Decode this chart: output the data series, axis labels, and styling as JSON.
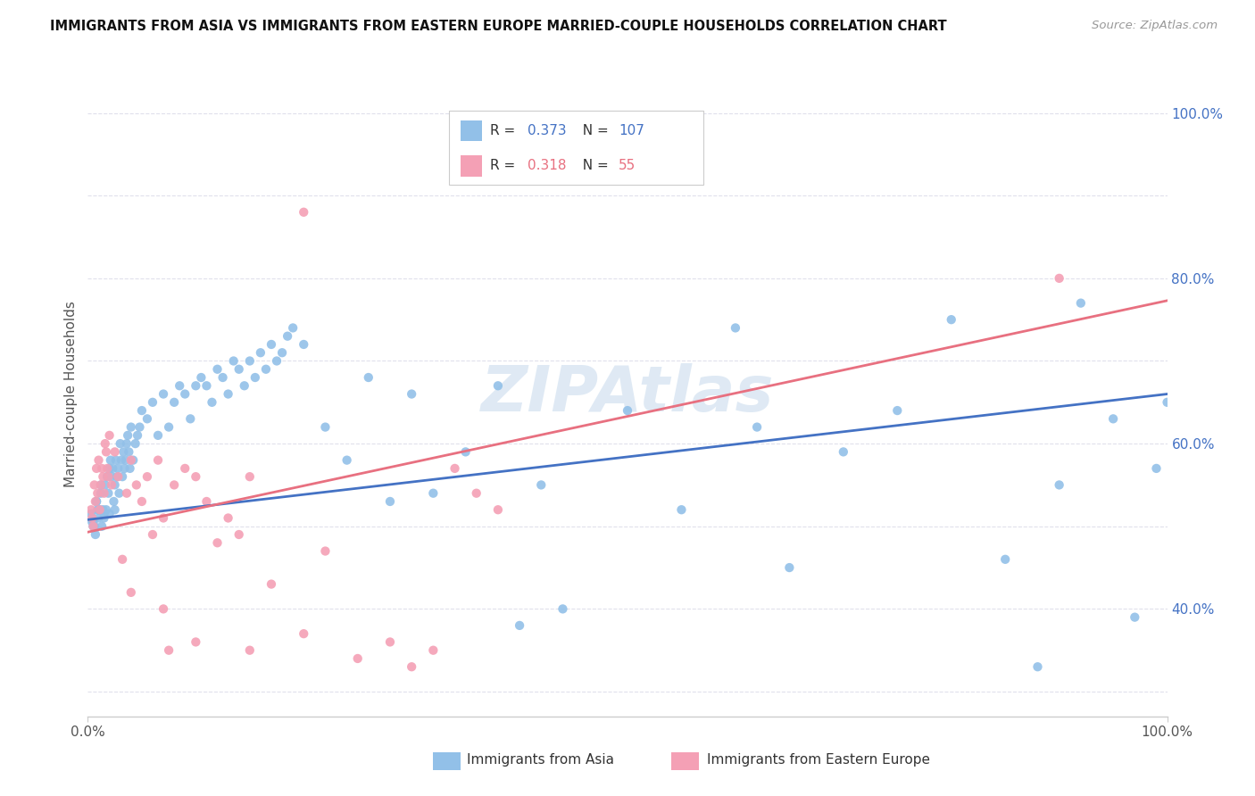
{
  "title": "IMMIGRANTS FROM ASIA VS IMMIGRANTS FROM EASTERN EUROPE MARRIED-COUPLE HOUSEHOLDS CORRELATION CHART",
  "source": "Source: ZipAtlas.com",
  "ylabel_left": "Married-couple Households",
  "x_min": 0.0,
  "x_max": 1.0,
  "y_min": 0.27,
  "y_max": 1.05,
  "blue_R": 0.373,
  "blue_N": 107,
  "pink_R": 0.318,
  "pink_N": 55,
  "blue_color": "#92C0E8",
  "pink_color": "#F4A0B5",
  "blue_line_color": "#4472C4",
  "pink_line_color": "#E87080",
  "watermark": "ZIPAtlas",
  "legend_label_blue": "Immigrants from Asia",
  "legend_label_pink": "Immigrants from Eastern Europe",
  "blue_intercept": 0.508,
  "blue_slope": 0.152,
  "pink_intercept": 0.493,
  "pink_slope": 0.28,
  "blue_x": [
    0.003,
    0.004,
    0.005,
    0.006,
    0.007,
    0.008,
    0.009,
    0.01,
    0.011,
    0.012,
    0.013,
    0.014,
    0.015,
    0.016,
    0.017,
    0.018,
    0.019,
    0.02,
    0.021,
    0.022,
    0.023,
    0.024,
    0.025,
    0.026,
    0.027,
    0.028,
    0.029,
    0.03,
    0.031,
    0.032,
    0.033,
    0.034,
    0.035,
    0.036,
    0.037,
    0.038,
    0.039,
    0.04,
    0.042,
    0.044,
    0.046,
    0.048,
    0.05,
    0.055,
    0.06,
    0.065,
    0.07,
    0.075,
    0.08,
    0.085,
    0.09,
    0.095,
    0.1,
    0.105,
    0.11,
    0.115,
    0.12,
    0.125,
    0.13,
    0.135,
    0.14,
    0.145,
    0.15,
    0.155,
    0.16,
    0.165,
    0.17,
    0.175,
    0.18,
    0.185,
    0.19,
    0.2,
    0.22,
    0.24,
    0.26,
    0.28,
    0.3,
    0.32,
    0.35,
    0.38,
    0.4,
    0.42,
    0.44,
    0.5,
    0.55,
    0.6,
    0.62,
    0.65,
    0.7,
    0.75,
    0.8,
    0.85,
    0.88,
    0.9,
    0.92,
    0.95,
    0.97,
    0.99,
    1.0,
    0.005,
    0.008,
    0.01,
    0.012,
    0.015,
    0.018,
    0.02,
    0.025
  ],
  "blue_y": [
    0.515,
    0.505,
    0.5,
    0.5,
    0.49,
    0.53,
    0.52,
    0.51,
    0.52,
    0.54,
    0.5,
    0.52,
    0.515,
    0.55,
    0.52,
    0.56,
    0.54,
    0.515,
    0.58,
    0.56,
    0.57,
    0.53,
    0.55,
    0.58,
    0.56,
    0.57,
    0.54,
    0.6,
    0.58,
    0.56,
    0.59,
    0.57,
    0.58,
    0.6,
    0.61,
    0.59,
    0.57,
    0.62,
    0.58,
    0.6,
    0.61,
    0.62,
    0.64,
    0.63,
    0.65,
    0.61,
    0.66,
    0.62,
    0.65,
    0.67,
    0.66,
    0.63,
    0.67,
    0.68,
    0.67,
    0.65,
    0.69,
    0.68,
    0.66,
    0.7,
    0.69,
    0.67,
    0.7,
    0.68,
    0.71,
    0.69,
    0.72,
    0.7,
    0.71,
    0.73,
    0.74,
    0.72,
    0.62,
    0.58,
    0.68,
    0.53,
    0.66,
    0.54,
    0.59,
    0.67,
    0.38,
    0.55,
    0.4,
    0.64,
    0.52,
    0.74,
    0.62,
    0.45,
    0.59,
    0.64,
    0.75,
    0.46,
    0.33,
    0.55,
    0.77,
    0.63,
    0.39,
    0.57,
    0.65,
    0.505,
    0.53,
    0.52,
    0.55,
    0.51,
    0.56,
    0.57,
    0.52
  ],
  "pink_x": [
    0.003,
    0.004,
    0.005,
    0.006,
    0.007,
    0.008,
    0.009,
    0.01,
    0.011,
    0.012,
    0.013,
    0.014,
    0.015,
    0.016,
    0.017,
    0.018,
    0.019,
    0.02,
    0.022,
    0.025,
    0.028,
    0.032,
    0.036,
    0.04,
    0.045,
    0.05,
    0.055,
    0.06,
    0.065,
    0.07,
    0.075,
    0.08,
    0.09,
    0.1,
    0.11,
    0.12,
    0.13,
    0.14,
    0.15,
    0.17,
    0.2,
    0.22,
    0.25,
    0.28,
    0.3,
    0.32,
    0.34,
    0.36,
    0.38,
    0.9,
    0.04,
    0.07,
    0.1,
    0.15,
    0.2
  ],
  "pink_y": [
    0.52,
    0.51,
    0.5,
    0.55,
    0.53,
    0.57,
    0.54,
    0.58,
    0.52,
    0.55,
    0.57,
    0.56,
    0.54,
    0.6,
    0.59,
    0.57,
    0.56,
    0.61,
    0.55,
    0.59,
    0.56,
    0.46,
    0.54,
    0.58,
    0.55,
    0.53,
    0.56,
    0.49,
    0.58,
    0.51,
    0.35,
    0.55,
    0.57,
    0.56,
    0.53,
    0.48,
    0.51,
    0.49,
    0.56,
    0.43,
    0.37,
    0.47,
    0.34,
    0.36,
    0.33,
    0.35,
    0.57,
    0.54,
    0.52,
    0.8,
    0.42,
    0.4,
    0.36,
    0.35,
    0.88
  ],
  "ytick_right": [
    0.4,
    0.6,
    0.8,
    1.0
  ],
  "ytick_right_labels": [
    "40.0%",
    "60.0%",
    "80.0%",
    "100.0%"
  ],
  "background_color": "#FFFFFF",
  "grid_color": "#E0E0EC"
}
